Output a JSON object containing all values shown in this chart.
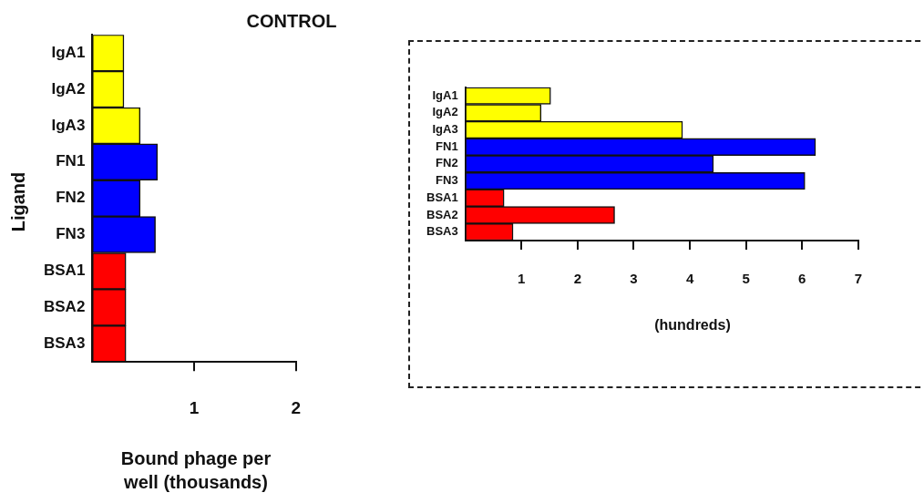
{
  "chart_data": [
    {
      "type": "bar",
      "orientation": "horizontal",
      "title": "CONTROL",
      "xlabel": "Bound phage per well (thousands)",
      "ylabel": "Ligand",
      "categories": [
        "IgA1",
        "IgA2",
        "IgA3",
        "FN1",
        "FN2",
        "FN3",
        "BSA1",
        "BSA2",
        "BSA3"
      ],
      "values": [
        0.31,
        0.31,
        0.47,
        0.64,
        0.47,
        0.62,
        0.33,
        0.33,
        0.33
      ],
      "colors": [
        "#ffff00",
        "#ffff00",
        "#ffff00",
        "#0000ff",
        "#0000ff",
        "#0000ff",
        "#ff0000",
        "#ff0000",
        "#ff0000"
      ],
      "xlim": [
        0,
        2
      ],
      "xticks": [
        1,
        2
      ],
      "grid": false,
      "legend": false
    },
    {
      "type": "bar",
      "orientation": "horizontal",
      "xlabel": "(hundreds)",
      "categories": [
        "IgA1",
        "IgA2",
        "IgA3",
        "FN1",
        "FN2",
        "FN3",
        "BSA1",
        "BSA2",
        "BSA3"
      ],
      "values": [
        1.52,
        1.35,
        3.87,
        6.24,
        4.42,
        6.05,
        0.69,
        2.66,
        0.85
      ],
      "colors": [
        "#ffff00",
        "#ffff00",
        "#ffff00",
        "#0000ff",
        "#0000ff",
        "#0000ff",
        "#ff0000",
        "#ff0000",
        "#ff0000"
      ],
      "xlim": [
        0,
        7
      ],
      "xticks": [
        1,
        2,
        3,
        4,
        5,
        6,
        7
      ],
      "grid": false,
      "legend": false
    }
  ]
}
